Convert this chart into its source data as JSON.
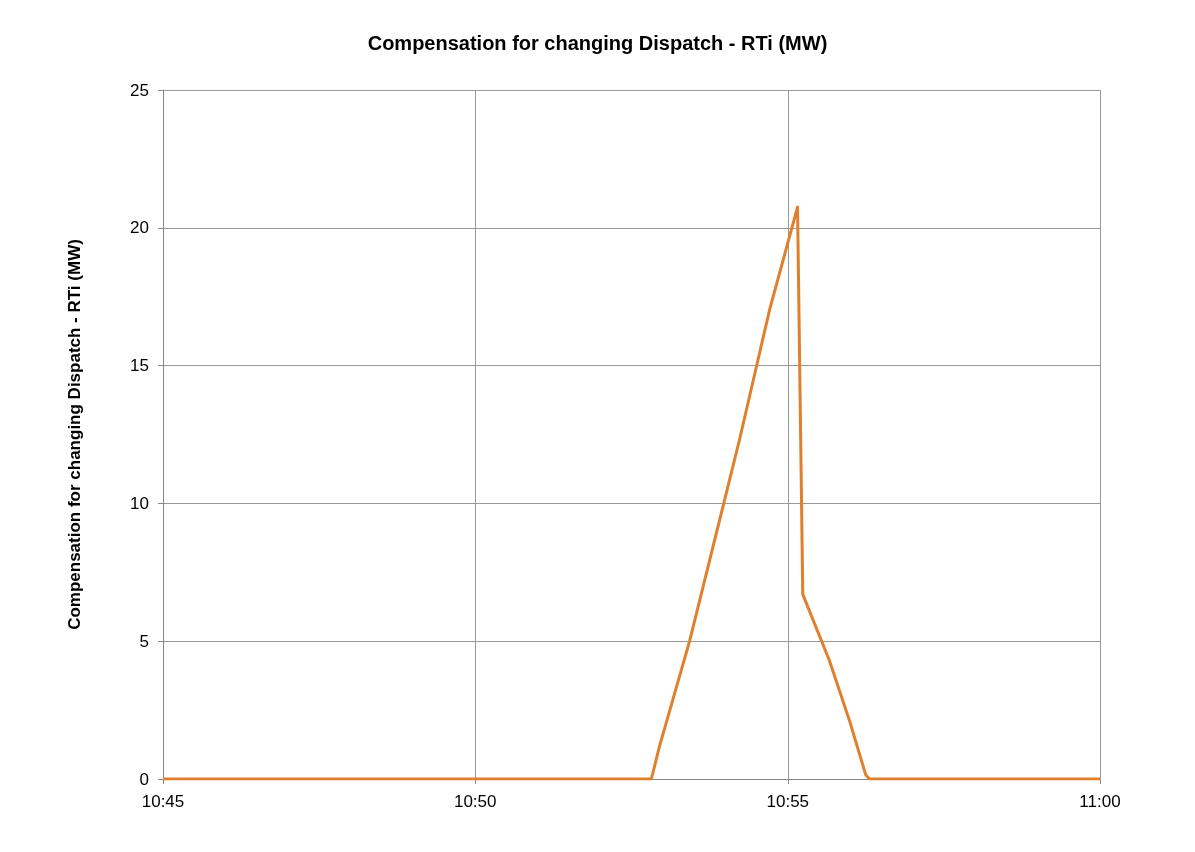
{
  "chart_data": {
    "type": "line",
    "title": "Compensation for changing Dispatch - RTi (MW)",
    "ylabel": "Compensation for changing Dispatch - RTi (MW)",
    "series": [
      {
        "color": "#e07f2c",
        "x": [
          10.75,
          10.8803,
          10.8825,
          10.8905,
          10.9038,
          10.9118,
          10.9193,
          10.9207,
          10.9278,
          10.9332,
          10.9375,
          10.9385,
          11.0
        ],
        "values": [
          0,
          0,
          1.2,
          5.0,
          12.3,
          17.0,
          20.75,
          6.7,
          4.3,
          2.1,
          0.15,
          0,
          0
        ]
      }
    ],
    "xlim": [
      10.75,
      11.0
    ],
    "xticks": [
      {
        "value": 10.75,
        "label": "10:45"
      },
      {
        "value": 10.8333,
        "label": "10:50"
      },
      {
        "value": 10.9167,
        "label": "10:55"
      },
      {
        "value": 11.0,
        "label": "11:00"
      }
    ],
    "ylim": [
      0,
      25
    ],
    "yticks": [
      0,
      5,
      10,
      15,
      20,
      25
    ],
    "grid": true,
    "marker": "none",
    "line_style": "solid"
  }
}
